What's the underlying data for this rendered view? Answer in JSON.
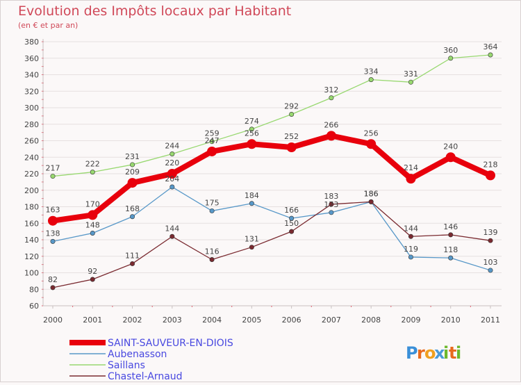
{
  "header": {
    "title": "Evolution des Impôts locaux par Habitant",
    "subtitle": "(en € et par an)"
  },
  "brand": {
    "logo_text": "Proxiti",
    "letters": [
      "P",
      "r",
      "o",
      "x",
      "i",
      "t",
      "i"
    ],
    "letter_colors": [
      "#3a8fd8",
      "#e86a1c",
      "#f0a020",
      "#4a9ad8",
      "#6cb82c",
      "#e86a1c",
      "#6cb82c"
    ]
  },
  "chart_data": {
    "type": "line",
    "title": "Evolution des Impôts locaux par Habitant",
    "subtitle": "(en € et par an)",
    "xlabel": "",
    "ylabel": "",
    "categories": [
      "2000",
      "2001",
      "2002",
      "2003",
      "2004",
      "2005",
      "2006",
      "2007",
      "2008",
      "2009",
      "2010",
      "2011"
    ],
    "ylim": [
      60,
      380
    ],
    "yticks": [
      60,
      80,
      100,
      120,
      140,
      160,
      180,
      200,
      220,
      240,
      260,
      280,
      300,
      320,
      340,
      360,
      380
    ],
    "grid": true,
    "legend_position": "bottom-left",
    "series": [
      {
        "name": "SAINT-SAUVEUR-EN-DIOIS",
        "color": "#e8000c",
        "emphasis": true,
        "values": [
          163,
          170,
          209,
          220,
          247,
          256,
          252,
          266,
          256,
          214,
          240,
          218
        ],
        "labels": [
          "163",
          "170",
          "209",
          "220",
          "247",
          "256",
          "252",
          "266",
          "256",
          "214",
          "240",
          "218"
        ]
      },
      {
        "name": "Aubenasson",
        "color": "#5898c8",
        "emphasis": false,
        "values": [
          138,
          148,
          168,
          204,
          175,
          184,
          166,
          173,
          186,
          119,
          118,
          103
        ],
        "labels": [
          "138",
          "148",
          "168",
          "204",
          "175",
          "184",
          "166",
          "173",
          "186",
          "119",
          "118",
          "103"
        ]
      },
      {
        "name": "Saillans",
        "color": "#98d870",
        "emphasis": false,
        "values": [
          217,
          222,
          231,
          244,
          259,
          274,
          292,
          312,
          334,
          331,
          360,
          364
        ],
        "labels": [
          "217",
          "222",
          "231",
          "244",
          "259",
          "274",
          "292",
          "312",
          "334",
          "331",
          "360",
          "364"
        ]
      },
      {
        "name": "Chastel-Arnaud",
        "color": "#7a2a30",
        "emphasis": false,
        "values": [
          82,
          92,
          111,
          144,
          116,
          131,
          150,
          183,
          186,
          144,
          146,
          139
        ],
        "labels": [
          "82",
          "92",
          "111",
          "144",
          "116",
          "131",
          "150",
          "183",
          "186",
          "144",
          "146",
          "139"
        ]
      }
    ]
  }
}
